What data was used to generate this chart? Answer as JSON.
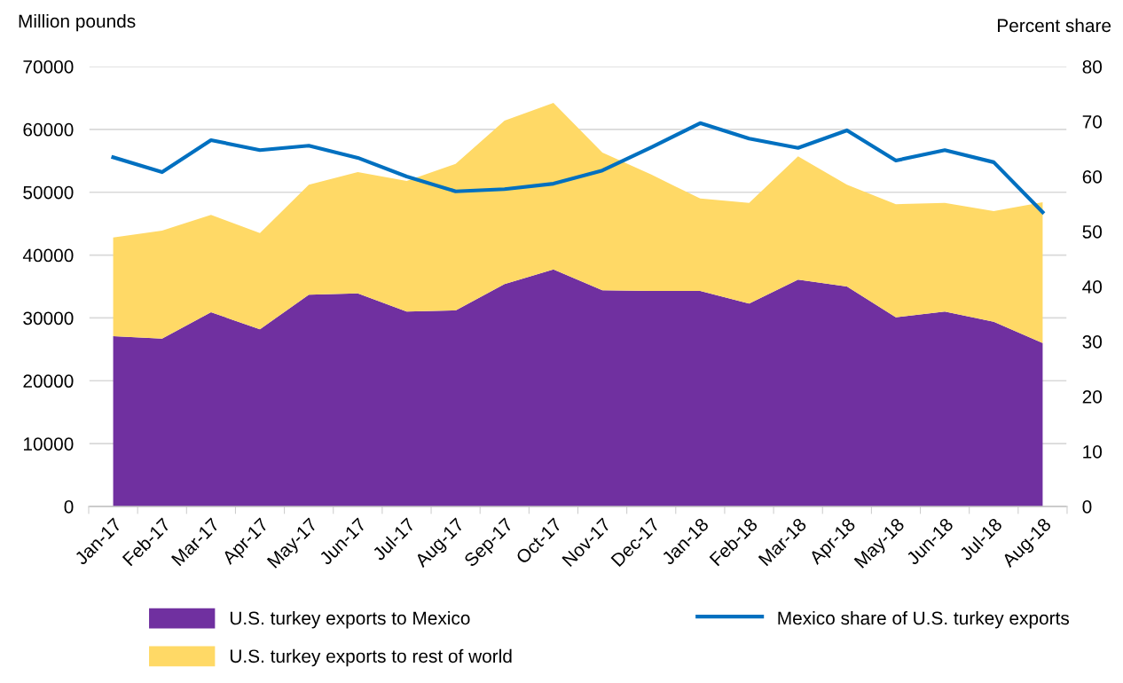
{
  "chart_data": {
    "type": "area",
    "stacked": true,
    "ylabel": "Million pounds",
    "y2label": "Percent share",
    "categories": [
      "Jan-17",
      "Feb-17",
      "Mar-17",
      "Apr-17",
      "May-17",
      "Jun-17",
      "Jul-17",
      "Aug-17",
      "Sep-17",
      "Oct-17",
      "Nov-17",
      "Dec-17",
      "Jan-18",
      "Feb-18",
      "Mar-18",
      "Apr-18",
      "May-18",
      "Jun-18",
      "Jul-18",
      "Aug-18"
    ],
    "series": [
      {
        "name": "U.S. turkey exports to Mexico",
        "color": "#7030a0",
        "values": [
          27100,
          26700,
          30900,
          28200,
          33700,
          33900,
          31000,
          31200,
          35400,
          37700,
          34400,
          34300,
          34300,
          32300,
          36100,
          35000,
          30100,
          31000,
          29400,
          26000
        ]
      },
      {
        "name": "U.S. turkey exports to rest of world",
        "color": "#ffd966",
        "values": [
          15700,
          17200,
          15500,
          15300,
          17500,
          19300,
          20800,
          23300,
          26000,
          26500,
          21900,
          18500,
          14700,
          16000,
          19600,
          16200,
          18000,
          17300,
          17600,
          22400
        ]
      },
      {
        "name": "Mexico share of U.S. turkey exports",
        "type": "line",
        "axis": "y2",
        "color": "#0070c0",
        "values": [
          63.5,
          60.8,
          66.6,
          64.8,
          65.6,
          63.4,
          60.0,
          57.3,
          57.7,
          58.7,
          61.1,
          65.3,
          69.7,
          66.9,
          65.2,
          68.4,
          62.9,
          64.8,
          62.6,
          53.5
        ]
      }
    ],
    "ylim": [
      0,
      70000
    ],
    "yticks": [
      0,
      10000,
      20000,
      30000,
      40000,
      50000,
      60000,
      70000
    ],
    "y2lim": [
      0,
      80
    ],
    "y2ticks": [
      0,
      10,
      20,
      30,
      40,
      50,
      60,
      70,
      80
    ],
    "grid": "y",
    "legend": "bottom",
    "marker": "none",
    "line_style": "solid"
  }
}
